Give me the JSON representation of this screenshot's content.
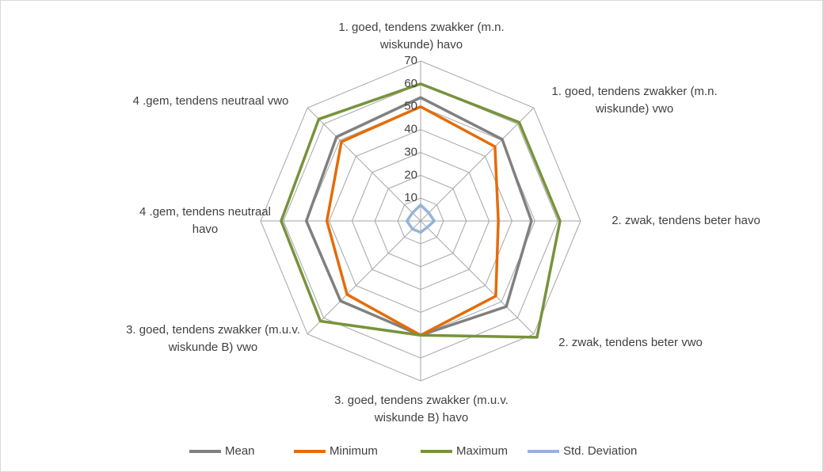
{
  "chart_data": {
    "type": "radar",
    "categories": [
      "1. goed, tendens zwakker (m.n. wiskunde) havo",
      "1. goed, tendens zwakker (m.n. wiskunde) vwo",
      "2. zwak, tendens beter havo",
      "2. zwak, tendens beter vwo",
      "3. goed, tendens zwakker (m.u.v. wiskunde B) havo",
      "3. goed, tendens zwakker (m.u.v. wiskunde B) vwo",
      "4 .gem, tendens neutraal havo",
      "4 .gem, tendens neutraal vwo"
    ],
    "series": [
      {
        "name": "Mean",
        "color": "#808080",
        "values": [
          54,
          50.5,
          48.5,
          53,
          50,
          49.5,
          50,
          52
        ]
      },
      {
        "name": "Minimum",
        "color": "#e46c0a",
        "values": [
          50,
          46,
          34,
          46.5,
          50,
          45.5,
          41,
          49
        ]
      },
      {
        "name": "Maximum",
        "color": "#77933c",
        "values": [
          60,
          61,
          61,
          72,
          50,
          62,
          61,
          63
        ]
      },
      {
        "name": "Std. Deviation",
        "color": "#95b3d7",
        "values": [
          7,
          5,
          6,
          4,
          5,
          5,
          6,
          5
        ]
      }
    ],
    "ylim": [
      0,
      70
    ],
    "yticks": [
      10,
      20,
      30,
      40,
      50,
      60,
      70
    ],
    "grid": true,
    "legend": "bottom"
  }
}
